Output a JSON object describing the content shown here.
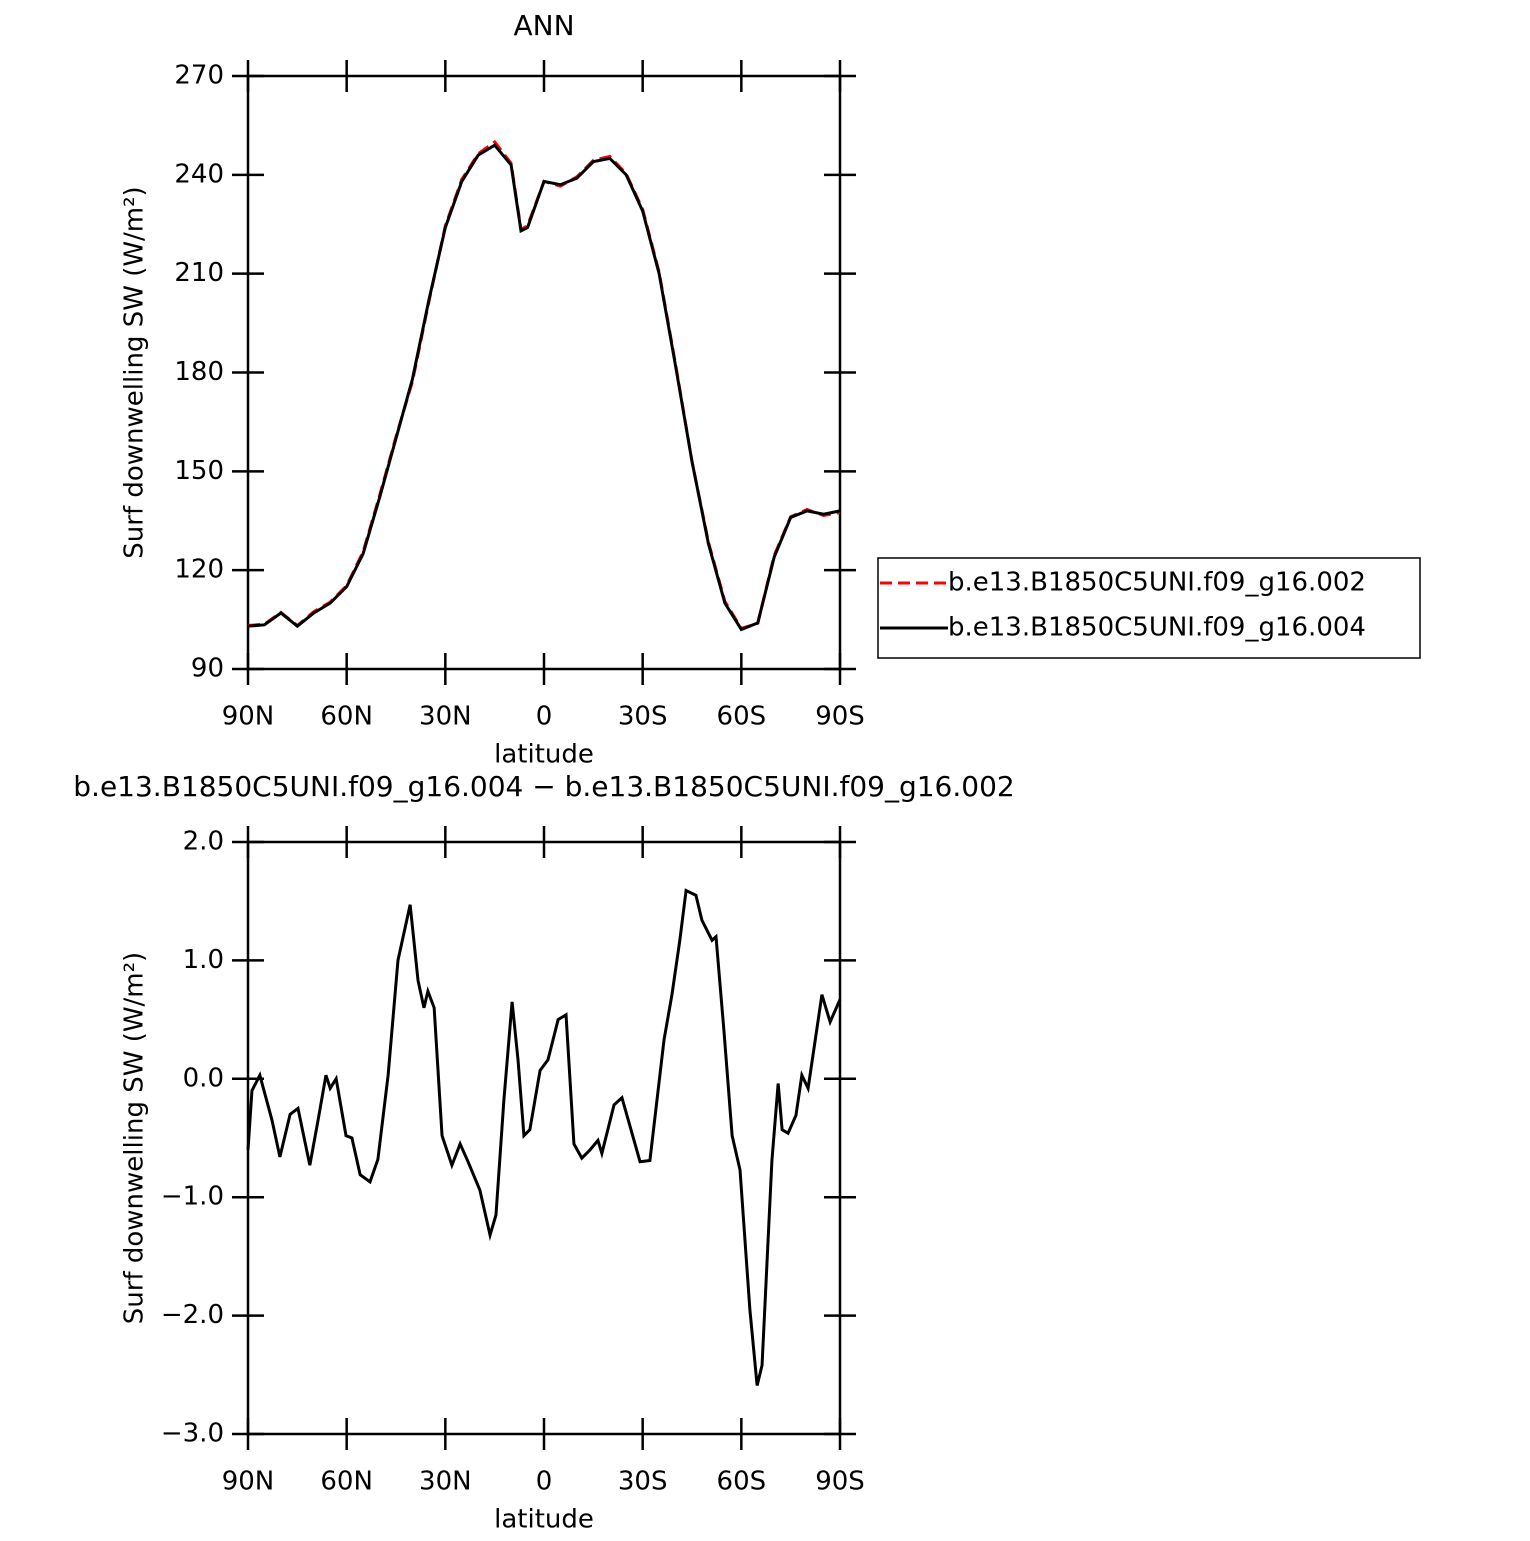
{
  "chart_data": [
    {
      "type": "line",
      "title": "ANN",
      "xlabel": "latitude",
      "ylabel": "Surf downwelling SW (W/m²)",
      "x": [
        90,
        85,
        80,
        75,
        70,
        65,
        60,
        55,
        50,
        45,
        40,
        35,
        30,
        25,
        20,
        15,
        10,
        7,
        5,
        0,
        -5,
        -10,
        -15,
        -20,
        -25,
        -30,
        -35,
        -40,
        -45,
        -50,
        -55,
        -60,
        -65,
        -70,
        -75,
        -80,
        -85,
        -90
      ],
      "series": [
        {
          "name": "b.e13.B1850C5UNI.f09_g16.002",
          "color": "#ff0000",
          "dash": true,
          "values": [
            103.2,
            103.6,
            107.2,
            103.2,
            107.4,
            110.3,
            115.3,
            125.6,
            142.6,
            160.5,
            177.3,
            201.5,
            224.5,
            238.6,
            246.4,
            250,
            243.5,
            223.4,
            224.6,
            238,
            236.6,
            239.4,
            244.4,
            245.6,
            240.3,
            229.5,
            210.5,
            182.5,
            153,
            128.5,
            110.5,
            102.3,
            103.9,
            124.5,
            136.2,
            138.4,
            136.6,
            137.5
          ]
        },
        {
          "name": "b.e13.B1850C5UNI.f09_g16.004",
          "color": "#000000",
          "dash": false,
          "values": [
            103,
            103.4,
            107,
            103,
            107,
            110,
            115,
            125,
            142,
            160,
            178,
            202,
            224,
            238,
            246,
            249,
            243,
            223,
            224,
            238,
            237,
            239,
            244,
            245,
            240,
            229,
            210,
            182,
            153,
            128,
            110,
            102,
            104,
            124,
            136,
            138,
            137,
            138
          ]
        }
      ],
      "xlim": [
        90,
        -90
      ],
      "xticks": [
        {
          "value": 90,
          "label": "90N"
        },
        {
          "value": 60,
          "label": "60N"
        },
        {
          "value": 30,
          "label": "30N"
        },
        0,
        {
          "value": -30,
          "label": "30S"
        },
        {
          "value": -60,
          "label": "60S"
        },
        {
          "value": -90,
          "label": "90S"
        }
      ],
      "ylim": [
        90,
        270
      ],
      "yticks": [
        90,
        120,
        150,
        180,
        210,
        240,
        270
      ],
      "legend": "right"
    },
    {
      "type": "line",
      "title": "b.e13.B1850C5UNI.f09_g16.004 − b.e13.B1850C5UNI.f09_g16.002",
      "xlabel": "latitude",
      "ylabel": "Surf downwelling SW (W/m²)",
      "x": [
        90,
        88.8,
        86.4,
        82.7,
        80.3,
        77.2,
        74.8,
        71.2,
        68.7,
        66.3,
        65,
        63.2,
        60.2,
        58.4,
        55.9,
        52.9,
        50.5,
        47.4,
        44.4,
        40.7,
        38.3,
        36.5,
        35.3,
        33.4,
        31,
        28,
        25.5,
        23.1,
        19.5,
        16.4,
        14.6,
        12.2,
        9.7,
        7.9,
        6.1,
        4.3,
        1.2,
        -1.2,
        -4.3,
        -6.7,
        -9.1,
        -11.5,
        -14,
        -16.4,
        -17.6,
        -21.3,
        -23.7,
        -29.2,
        -32.2,
        -36.5,
        -38.9,
        -41.3,
        -43.2,
        -46.2,
        -48,
        -51.1,
        -52.3,
        -54.7,
        -57.2,
        -59.6,
        -62.6,
        -64.8,
        -66.3,
        -69.3,
        -71.2,
        -72.4,
        -74.2,
        -76.6,
        -78.4,
        -80.3,
        -84.5,
        -87,
        -90
      ],
      "series": [
        {
          "color": "#000000",
          "values": [
            -0.6,
            -0.1,
            0.03,
            -0.35,
            -0.66,
            -0.3,
            -0.25,
            -0.73,
            -0.35,
            0.03,
            -0.08,
            0,
            -0.48,
            -0.5,
            -0.81,
            -0.87,
            -0.68,
            0.03,
            1,
            1.47,
            0.83,
            0.6,
            0.74,
            0.6,
            -0.48,
            -0.73,
            -0.55,
            -0.7,
            -0.94,
            -1.32,
            -1.15,
            -0.18,
            0.65,
            0.16,
            -0.48,
            -0.43,
            0.07,
            0.16,
            0.5,
            0.54,
            -0.55,
            -0.67,
            -0.6,
            -0.52,
            -0.63,
            -0.22,
            -0.16,
            -0.7,
            -0.69,
            0.33,
            0.71,
            1.17,
            1.59,
            1.55,
            1.34,
            1.17,
            1.2,
            0.41,
            -0.48,
            -0.77,
            -1.95,
            -2.59,
            -2.42,
            -0.69,
            -0.04,
            -0.43,
            -0.46,
            -0.31,
            0.03,
            -0.08,
            0.71,
            0.48,
            0.67
          ]
        }
      ],
      "xlim": [
        90,
        -90
      ],
      "xticks": [
        {
          "value": 90,
          "label": "90N"
        },
        {
          "value": 60,
          "label": "60N"
        },
        {
          "value": 30,
          "label": "30N"
        },
        0,
        {
          "value": -30,
          "label": "30S"
        },
        {
          "value": -60,
          "label": "60S"
        },
        {
          "value": -90,
          "label": "90S"
        }
      ],
      "ylim": [
        -3,
        2
      ],
      "yticks": [
        {
          "value": -3,
          "label": "−3.0"
        },
        {
          "value": -2,
          "label": "−2.0"
        },
        {
          "value": -1,
          "label": "−1.0"
        },
        {
          "value": 0,
          "label": "0.0"
        },
        {
          "value": 1,
          "label": "1.0"
        },
        {
          "value": 2,
          "label": "2.0"
        }
      ]
    }
  ]
}
